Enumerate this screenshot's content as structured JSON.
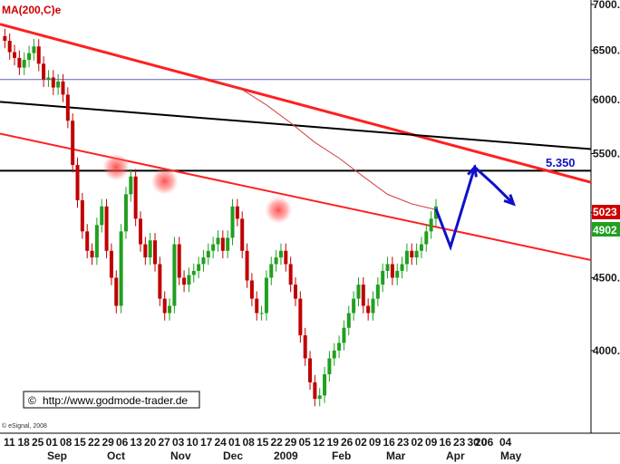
{
  "chart_data": {
    "type": "candlestick",
    "indicator_label": "MA(200,C)e",
    "yaxis": {
      "ticks": [
        "7000.",
        "6500.",
        "6000.",
        "5500.",
        "5000.",
        "4500.",
        "4000."
      ],
      "ylim": [
        3500,
        7050
      ]
    },
    "xaxis": {
      "day_labels": [
        "11",
        "18",
        "25",
        "01",
        "08",
        "15",
        "22",
        "29",
        "06",
        "13",
        "20",
        "27",
        "03",
        "10",
        "17",
        "24",
        "01",
        "08",
        "15",
        "22",
        "29",
        "05",
        "12",
        "19",
        "26",
        "02",
        "09",
        "16",
        "23",
        "02",
        "09",
        "16",
        "23",
        "30",
        "06",
        "20",
        "04"
      ],
      "month_labels": [
        "Sep",
        "Oct",
        "Nov",
        "Dec",
        "2009",
        "Feb",
        "Mar",
        "Apr",
        "May"
      ]
    },
    "price_tags": [
      {
        "value": "5023",
        "color": "#cc0000"
      },
      {
        "value": "4902",
        "color": "#20a020"
      }
    ],
    "target_label": "5.350",
    "horizontal_line": 5350,
    "series": [
      {
        "name": "",
        "x": [
          0,
          2,
          4,
          6,
          8,
          10,
          12,
          14,
          16,
          18,
          20,
          22,
          24,
          26,
          28,
          30,
          32,
          34,
          36,
          38,
          40,
          42,
          44,
          46,
          48,
          50,
          52,
          54,
          56,
          58,
          60,
          62,
          64,
          66,
          68,
          70,
          72,
          74,
          76,
          78,
          80,
          82,
          84,
          86,
          88,
          90,
          92,
          94,
          96,
          98,
          100,
          102,
          104,
          106,
          108,
          110,
          112,
          114,
          116,
          118,
          120,
          122,
          124,
          126,
          128,
          130,
          132,
          134,
          136,
          138,
          140,
          142,
          144,
          146,
          148,
          150,
          152,
          154,
          156,
          158,
          160,
          162,
          164,
          166,
          168,
          170,
          172,
          174,
          176,
          178,
          180
        ],
        "y": [
          6650,
          6600,
          6480,
          6420,
          6320,
          6400,
          6470,
          6540,
          6360,
          6200,
          6220,
          6120,
          6180,
          6050,
          5800,
          5400,
          5100,
          4850,
          4700,
          4650,
          4900,
          5050,
          4700,
          4500,
          4300,
          4850,
          5150,
          5300,
          4950,
          4750,
          4650,
          4780,
          4600,
          4350,
          4250,
          4300,
          4750,
          4500,
          4450,
          4520,
          4550,
          4600,
          4650,
          4700,
          4750,
          4800,
          4700,
          4800,
          5050,
          4950,
          4700,
          4480,
          4350,
          4250,
          4250,
          4500,
          4600,
          4650,
          4700,
          4600,
          4450,
          4350,
          4100,
          3950,
          3800,
          3700,
          3720,
          3850,
          3950,
          4000,
          4050,
          4150,
          4250,
          4350,
          4450,
          4300,
          4250,
          4350,
          4450,
          4550,
          4600,
          4500,
          4550,
          4600,
          4700,
          4650,
          4700,
          4750,
          4850,
          4950,
          5050
        ]
      }
    ],
    "trendlines": [
      {
        "name": "",
        "color": "#ff2020",
        "width": 3,
        "from": [
          0,
          6780
        ],
        "to": [
          244,
          5250
        ]
      },
      {
        "name": "",
        "color": "#000000",
        "width": 2,
        "from": [
          0,
          5980
        ],
        "to": [
          244,
          5540
        ]
      },
      {
        "name": "",
        "color": "#ff2020",
        "width": 2,
        "from": [
          0,
          5680
        ],
        "to": [
          244,
          4630
        ]
      },
      {
        "name": "",
        "color": "#ffffff",
        "width": 0,
        "from": [
          0,
          0
        ],
        "to": [
          0,
          0
        ]
      }
    ],
    "ma_line": {
      "name": "",
      "x": [
        90,
        100,
        110,
        120,
        130,
        140,
        150,
        160,
        170,
        180
      ],
      "y": [
        6180,
        6100,
        5950,
        5780,
        5600,
        5460,
        5300,
        5150,
        5070,
        5023
      ]
    },
    "resistance_points": [
      {
        "x": 48,
        "y": 5380
      },
      {
        "x": 68,
        "y": 5260
      },
      {
        "x": 115,
        "y": 5020
      }
    ],
    "projection": {
      "x": [
        180,
        186,
        196,
        204,
        212
      ],
      "y": [
        5030,
        4730,
        5380,
        5230,
        5070
      ]
    },
    "title": "",
    "xlabel": "",
    "ylabel": "",
    "grid": false
  },
  "footer": {
    "url": "http://www.godmode-trader.de",
    "copyright": "© eSignal, 2008"
  },
  "top_line_level": 6200
}
